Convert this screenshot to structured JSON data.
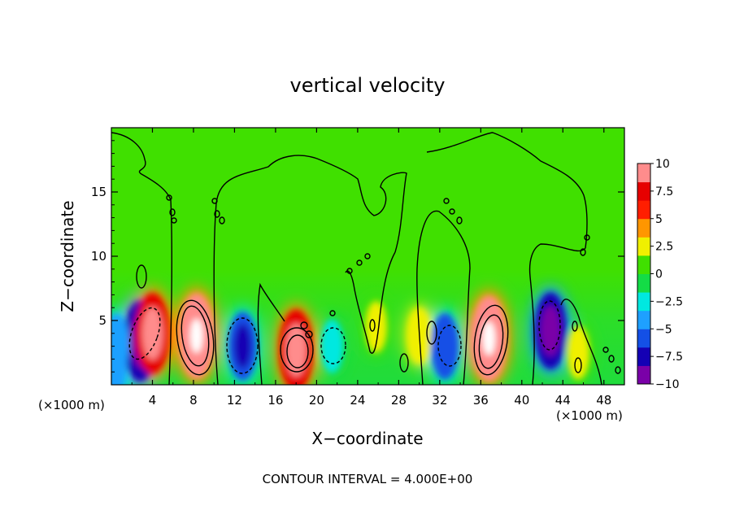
{
  "chart_data": {
    "type": "heatmap",
    "title": "vertical velocity",
    "xlabel": "X−coordinate",
    "ylabel": "Z−coordinate",
    "x_unit_left": "(×1000 m)",
    "x_unit_right": "(×1000 m)",
    "footer": "CONTOUR INTERVAL = 4.000E+00",
    "xlim": [
      0,
      50
    ],
    "ylim": [
      0,
      20
    ],
    "x_ticks": [
      4,
      8,
      12,
      16,
      20,
      24,
      28,
      32,
      36,
      40,
      44,
      48
    ],
    "y_ticks": [
      5,
      10,
      15
    ],
    "colorbar": {
      "min": -10,
      "max": 10,
      "tick_values": [
        10,
        7.5,
        5,
        2.5,
        0,
        -2.5,
        -5,
        -7.5,
        -10
      ],
      "tick_labels": [
        "10",
        "7.5",
        "5",
        "2.5",
        "0",
        "−2.5",
        "−5",
        "−7.5",
        "−10"
      ],
      "colors": [
        "#7a00a8",
        "#1400b4",
        "#1450e6",
        "#1ea0ff",
        "#00e8e0",
        "#14dc46",
        "#40e000",
        "#f0f000",
        "#ff9600",
        "#ff1e00",
        "#e60000",
        "#ff8c8c"
      ]
    },
    "features": [
      {
        "x": 2.8,
        "z": 3.4,
        "value": -10
      },
      {
        "x": 4.0,
        "z": 4.0,
        "value": 10
      },
      {
        "x": 8.3,
        "z": 3.8,
        "value": 11
      },
      {
        "x": 12.8,
        "z": 3.0,
        "value": -7
      },
      {
        "x": 18.0,
        "z": 2.7,
        "value": 10
      },
      {
        "x": 21.5,
        "z": 3.0,
        "value": -3.5
      },
      {
        "x": 25.8,
        "z": 4.5,
        "value": 3
      },
      {
        "x": 30.0,
        "z": 3.8,
        "value": 4
      },
      {
        "x": 32.5,
        "z": 3.0,
        "value": -6.5
      },
      {
        "x": 36.8,
        "z": 3.6,
        "value": 11
      },
      {
        "x": 42.8,
        "z": 4.2,
        "value": -9
      },
      {
        "x": 45.5,
        "z": 2.5,
        "value": 3.5
      },
      {
        "x": 0.5,
        "z": 3.2,
        "value": -5
      },
      {
        "x": 0.2,
        "z": 1.5,
        "value": -6
      }
    ]
  }
}
